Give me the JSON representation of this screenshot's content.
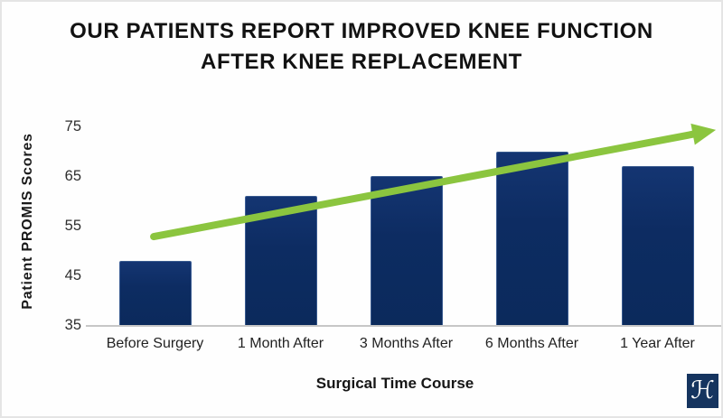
{
  "chart_data": {
    "type": "bar",
    "title": "OUR PATIENTS REPORT IMPROVED KNEE FUNCTION AFTER KNEE REPLACEMENT",
    "title_lines": [
      "OUR PATIENTS REPORT IMPROVED KNEE FUNCTION",
      "AFTER KNEE REPLACEMENT"
    ],
    "categories": [
      "Before Surgery",
      "1 Month After",
      "3 Months After",
      "6 Months After",
      "1 Year After"
    ],
    "values": [
      48,
      61,
      65,
      70,
      67
    ],
    "xlabel": "Surgical Time Course",
    "ylabel": "Patient PROMIS Scores",
    "ylim": [
      35,
      77
    ],
    "yticks": [
      35,
      45,
      55,
      65,
      75
    ],
    "grid": false,
    "legend_position": "none",
    "bar_color": "#0d2c62",
    "axis_line_color": "#c7c7c7",
    "trend_arrow": {
      "description": "upward trend arrow over bars",
      "color": "#8bc53f",
      "thickness": 8,
      "head_length": 26,
      "head_width": 24,
      "start": {
        "x_frac": 0.098,
        "value": 52.8
      },
      "end": {
        "x_frac": 0.993,
        "value": 74.3
      }
    }
  },
  "logo": {
    "monogram": "ℋ",
    "bg_color": "#15345f"
  }
}
